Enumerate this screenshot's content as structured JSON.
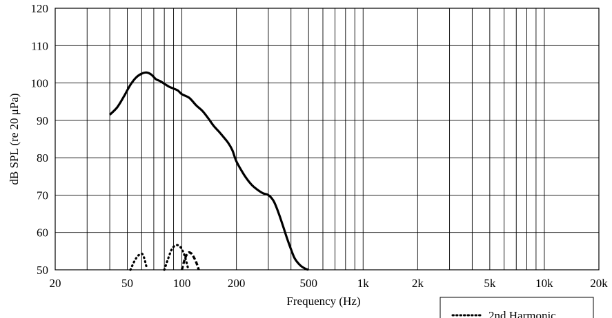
{
  "chart_data": {
    "type": "line",
    "title": "",
    "xlabel": "Frequency (Hz)",
    "ylabel": "dB SPL (re 20 μPa)",
    "x_scale": "log",
    "xlim": [
      20,
      20000
    ],
    "ylim": [
      50,
      120
    ],
    "grid": true,
    "x_ticks": [
      20,
      50,
      100,
      200,
      500,
      1000,
      2000,
      5000,
      10000,
      20000
    ],
    "x_tick_labels": [
      "20",
      "50",
      "100",
      "200",
      "500",
      "1k",
      "2k",
      "5k",
      "10k",
      "20k"
    ],
    "y_ticks": [
      50,
      60,
      70,
      80,
      90,
      100,
      110,
      120
    ],
    "y_tick_labels": [
      "50",
      "60",
      "70",
      "80",
      "90",
      "100",
      "110",
      "120"
    ],
    "legend_position": "bottom-right",
    "series": [
      {
        "style": "solid",
        "x": [
          40,
          44,
          48,
          52,
          56,
          60,
          64,
          68,
          72,
          76,
          80,
          85,
          90,
          95,
          100,
          110,
          120,
          130,
          140,
          150,
          160,
          170,
          180,
          190,
          200,
          220,
          240,
          260,
          280,
          300,
          320,
          340,
          360,
          380,
          400,
          420,
          450,
          480,
          500
        ],
        "y": [
          91.5,
          93.5,
          96.5,
          99.5,
          101.5,
          102.5,
          102.8,
          102.2,
          101.0,
          100.5,
          99.8,
          99.0,
          98.5,
          98.0,
          97.0,
          96.0,
          94.0,
          92.5,
          90.5,
          88.5,
          87.0,
          85.5,
          84.0,
          82.0,
          79.0,
          75.5,
          73.0,
          71.5,
          70.5,
          70.0,
          68.5,
          65.5,
          62.0,
          58.5,
          55.5,
          53.0,
          51.2,
          50.3,
          50.0
        ]
      },
      {
        "name": "2nd Harmonic",
        "style": "dotted",
        "x": [
          52,
          55,
          58,
          61,
          64,
          80,
          84,
          88,
          92,
          96,
          100,
          104,
          108
        ],
        "y": [
          50.0,
          52.5,
          54.0,
          54.0,
          50.5,
          50.0,
          53.0,
          55.5,
          56.5,
          56.5,
          55.5,
          53.5,
          50.5
        ],
        "segments": [
          [
            0,
            4
          ],
          [
            5,
            12
          ]
        ]
      },
      {
        "style": "dashed",
        "x": [
          100,
          104,
          108,
          112,
          116,
          120,
          124
        ],
        "y": [
          50.0,
          53.0,
          54.5,
          54.5,
          53.5,
          52.0,
          50.0
        ]
      }
    ]
  }
}
